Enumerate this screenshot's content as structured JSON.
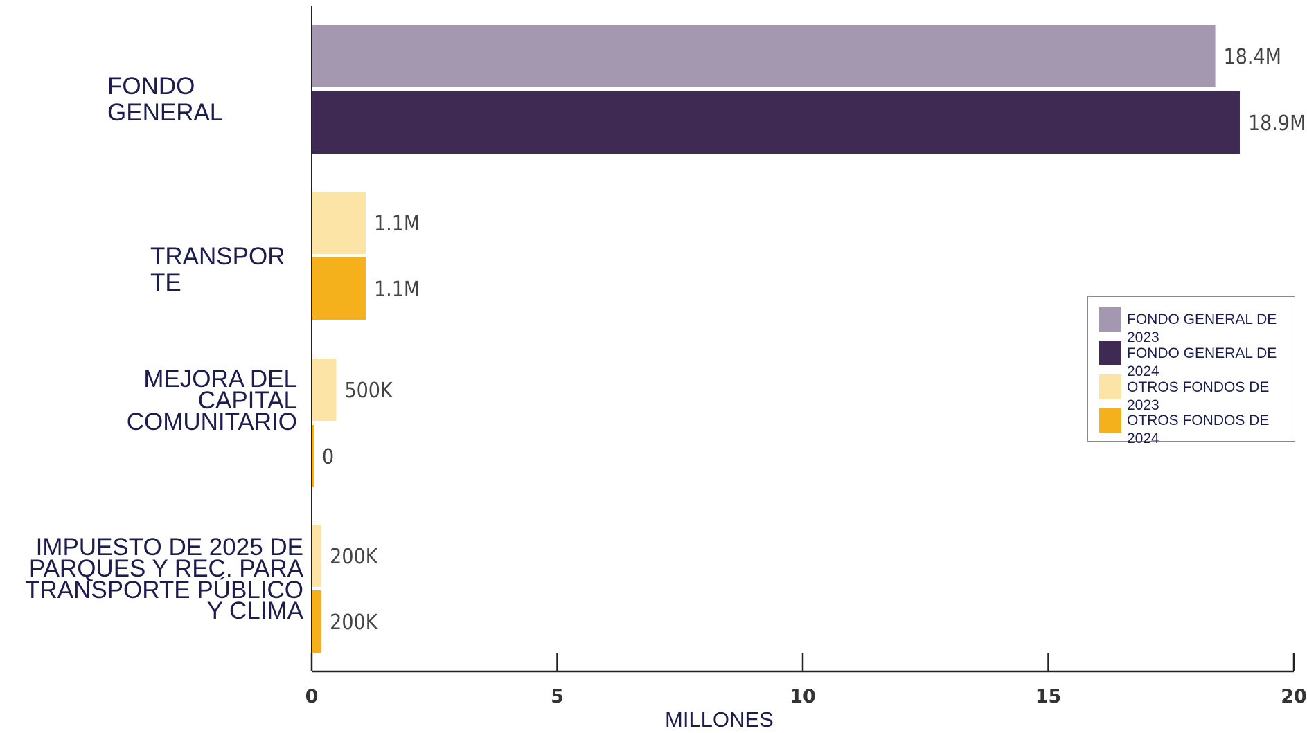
{
  "chart_data": {
    "type": "bar",
    "orientation": "horizontal",
    "categories": [
      [
        "FONDO",
        "GENERAL"
      ],
      [
        "TRANSPOR",
        "TE"
      ],
      [
        "MEJORA DEL",
        "CAPITAL",
        "COMUNITARIO"
      ],
      [
        "IMPUESTO DE 2025 DE",
        "PARQUES Y REC. PARA",
        "TRANSPORTE PÚBLICO",
        "Y CLIMA"
      ]
    ],
    "bars": [
      {
        "category": 0,
        "series": 0,
        "value": 18.4,
        "label": "18.4M"
      },
      {
        "category": 0,
        "series": 1,
        "value": 18.9,
        "label": "18.9M"
      },
      {
        "category": 1,
        "series": 2,
        "value": 1.1,
        "label": "1.1M"
      },
      {
        "category": 1,
        "series": 3,
        "value": 1.1,
        "label": "1.1M"
      },
      {
        "category": 2,
        "series": 2,
        "value": 0.5,
        "label": "500K"
      },
      {
        "category": 2,
        "series": 3,
        "value": 0,
        "label": "0"
      },
      {
        "category": 3,
        "series": 2,
        "value": 0.2,
        "label": "200K"
      },
      {
        "category": 3,
        "series": 3,
        "value": 0.2,
        "label": "200K"
      }
    ],
    "series": [
      {
        "name": "FONDO GENERAL DE 2023",
        "color": "#a497b0"
      },
      {
        "name": "FONDO GENERAL DE 2024",
        "color": "#3e2a52"
      },
      {
        "name": "OTROS FONDOS DE 2023",
        "color": "#fce3a6"
      },
      {
        "name": "OTROS FONDOS DE 2024",
        "color": "#f4b11b"
      }
    ],
    "x_ticks": [
      "0",
      "5",
      "10",
      "15",
      "20"
    ],
    "xlim": [
      0,
      20
    ],
    "xlabel": "MILLONES",
    "legend_position": "right",
    "grid": false
  }
}
